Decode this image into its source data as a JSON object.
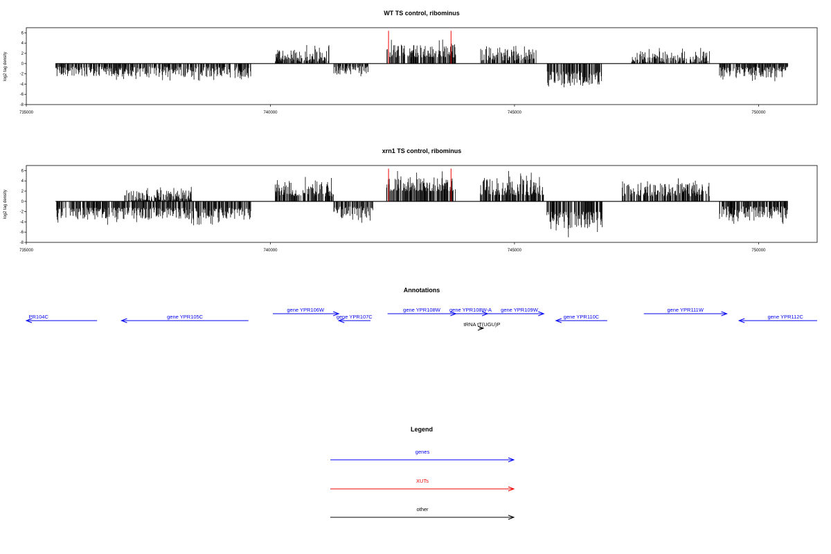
{
  "colors": {
    "gene": "#0000ee",
    "xut": "#ee0000",
    "other": "#000000",
    "axis": "#000000"
  },
  "chart_data": [
    {
      "type": "bar",
      "title": "WT TS control, ribominus",
      "ylabel": "log2 tag density",
      "xlim": [
        735000,
        751200
      ],
      "ylim": [
        -8,
        7
      ],
      "x_ticks": [
        735000,
        740000,
        745000,
        750000
      ],
      "y_ticks": [
        6,
        4,
        2,
        0,
        -2,
        -4,
        -6,
        -8
      ],
      "x_tick_labels": [
        "735000",
        "740000",
        "745000",
        "750000"
      ],
      "y_tick_labels": [
        "6",
        "4",
        "2",
        "0",
        "-2",
        "-4",
        "-6",
        "-8"
      ],
      "baseline": [
        735600,
        750600
      ],
      "xut_markers": [
        742420,
        743700
      ],
      "segments": [
        {
          "start": 735600,
          "end": 739600,
          "strand": "minus",
          "amp": 2.6,
          "min": 0.6,
          "seed": 11
        },
        {
          "start": 740100,
          "end": 741200,
          "strand": "plus",
          "amp": 2.8,
          "min": 0.4,
          "seed": 12
        },
        {
          "start": 741300,
          "end": 742000,
          "strand": "minus",
          "amp": 2.2,
          "min": 0.5,
          "seed": 13
        },
        {
          "start": 742380,
          "end": 743800,
          "strand": "plus",
          "amp": 3.6,
          "min": 1.2,
          "seed": 14
        },
        {
          "start": 744300,
          "end": 745450,
          "strand": "plus",
          "amp": 3.0,
          "min": 0.6,
          "seed": 15
        },
        {
          "start": 745650,
          "end": 746800,
          "strand": "minus",
          "amp": 4.6,
          "min": 1.5,
          "seed": 16
        },
        {
          "start": 747400,
          "end": 749000,
          "strand": "plus",
          "amp": 2.4,
          "min": 0.3,
          "seed": 17
        },
        {
          "start": 749200,
          "end": 750600,
          "strand": "minus",
          "amp": 2.8,
          "min": 0.6,
          "seed": 18
        }
      ]
    },
    {
      "type": "bar",
      "title": "xrn1 TS control, ribominus",
      "ylabel": "log2 tag density",
      "xlim": [
        735000,
        751200
      ],
      "ylim": [
        -8,
        7
      ],
      "x_ticks": [
        735000,
        740000,
        745000,
        750000
      ],
      "y_ticks": [
        6,
        4,
        2,
        0,
        -2,
        -4,
        -6,
        -8
      ],
      "x_tick_labels": [
        "735000",
        "740000",
        "745000",
        "750000"
      ],
      "y_tick_labels": [
        "6",
        "4",
        "2",
        "0",
        "-2",
        "-4",
        "-6",
        "-8"
      ],
      "baseline": [
        735600,
        750600
      ],
      "xut_markers": [
        742420,
        743700
      ],
      "segments": [
        {
          "start": 735600,
          "end": 739600,
          "strand": "minus",
          "amp": 3.6,
          "min": 1.2,
          "seed": 21
        },
        {
          "start": 737000,
          "end": 738400,
          "strand": "plus",
          "amp": 2.2,
          "min": 0.2,
          "seed": 22
        },
        {
          "start": 740100,
          "end": 741300,
          "strand": "plus",
          "amp": 4.0,
          "min": 1.0,
          "seed": 23
        },
        {
          "start": 741300,
          "end": 742100,
          "strand": "minus",
          "amp": 3.2,
          "min": 1.0,
          "seed": 24
        },
        {
          "start": 742380,
          "end": 743800,
          "strand": "plus",
          "amp": 4.6,
          "min": 2.0,
          "seed": 25
        },
        {
          "start": 744300,
          "end": 745600,
          "strand": "plus",
          "amp": 4.6,
          "min": 1.2,
          "seed": 26
        },
        {
          "start": 745650,
          "end": 746800,
          "strand": "minus",
          "amp": 5.4,
          "min": 2.0,
          "seed": 27
        },
        {
          "start": 747200,
          "end": 749000,
          "strand": "plus",
          "amp": 3.6,
          "min": 1.0,
          "seed": 28
        },
        {
          "start": 749200,
          "end": 750600,
          "strand": "minus",
          "amp": 3.4,
          "min": 1.0,
          "seed": 29
        }
      ]
    }
  ],
  "annotations": {
    "title": "Annotations",
    "features": [
      {
        "label": "PR104C",
        "start": 735000,
        "end": 736450,
        "strand": "minus",
        "type": "gene",
        "row": 0,
        "label_pos": 735050
      },
      {
        "label": "gene YPR105C",
        "start": 736950,
        "end": 739550,
        "strand": "minus",
        "type": "gene",
        "row": 0,
        "label_pos": 738250
      },
      {
        "label": "gene YPR106W",
        "start": 740050,
        "end": 741400,
        "strand": "plus",
        "type": "gene",
        "row": 1,
        "label_pos": 740720
      },
      {
        "label": "gene YPR107C",
        "start": 741400,
        "end": 742050,
        "strand": "minus",
        "type": "gene",
        "row": 0,
        "label_pos": 741720
      },
      {
        "label": "gene YPR108W",
        "start": 742400,
        "end": 743800,
        "strand": "plus",
        "type": "gene",
        "row": 1,
        "label_pos": 743100
      },
      {
        "label": "gene YPR108W-A",
        "start": 743800,
        "end": 744450,
        "strand": "plus",
        "type": "gene",
        "row": 1,
        "label_pos": 744100
      },
      {
        "label": "gene YPR109W",
        "start": 744450,
        "end": 745600,
        "strand": "plus",
        "type": "gene",
        "row": 1,
        "label_pos": 745100
      },
      {
        "label": "gene YPR110C",
        "start": 745850,
        "end": 746900,
        "strand": "minus",
        "type": "gene",
        "row": 0,
        "label_pos": 746370
      },
      {
        "label": "gene YPR111W",
        "start": 747650,
        "end": 749350,
        "strand": "plus",
        "type": "gene",
        "row": 1,
        "label_pos": 748500
      },
      {
        "label": "gene YPR112C",
        "start": 749600,
        "end": 751200,
        "strand": "minus",
        "type": "gene",
        "row": 0,
        "label_pos": 750550
      },
      {
        "label": "tRNA tT(UGU)P",
        "start": 744000,
        "end": 744100,
        "strand": "plus",
        "type": "other",
        "row": 2,
        "label_pos": 744060
      }
    ]
  },
  "legend": {
    "title": "Legend",
    "items": [
      {
        "label": "genes",
        "type": "gene"
      },
      {
        "label": "XUTs",
        "type": "xut"
      },
      {
        "label": "other",
        "type": "other"
      }
    ]
  }
}
